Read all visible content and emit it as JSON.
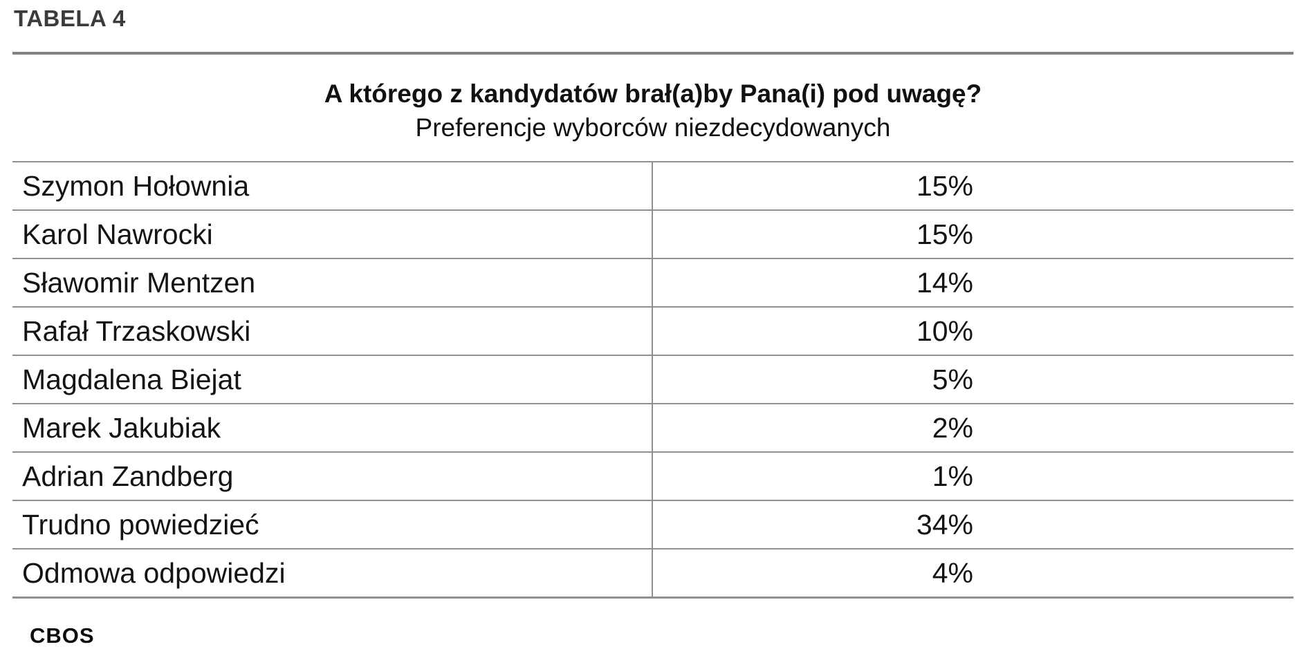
{
  "header": {
    "table_label": "TABELA 4"
  },
  "title": {
    "question": "A którego z kandydatów brał(a)by Pana(i) pod uwagę?",
    "subtitle": "Preferencje wyborców niezdecydowanych"
  },
  "table": {
    "rows": [
      {
        "label": "Szymon Hołownia",
        "value": "15%"
      },
      {
        "label": "Karol Nawrocki",
        "value": "15%"
      },
      {
        "label": "Sławomir Mentzen",
        "value": "14%"
      },
      {
        "label": "Rafał Trzaskowski",
        "value": "10%"
      },
      {
        "label": "Magdalena Biejat",
        "value": "5%"
      },
      {
        "label": "Marek Jakubiak",
        "value": "2%"
      },
      {
        "label": "Adrian Zandberg",
        "value": "1%"
      },
      {
        "label": "Trudno powiedzieć",
        "value": "34%"
      },
      {
        "label": "Odmowa odpowiedzi",
        "value": "4%"
      }
    ]
  },
  "footer": {
    "logo_text": "CBOS"
  },
  "colors": {
    "rule_gray": "#828282",
    "table_border_gray": "#8f8f8f",
    "heading_text": "#3b3b3d",
    "body_text": "#141414",
    "background": "#ffffff"
  },
  "chart_data": {
    "type": "table",
    "title": "A którego z kandydatów brał(a)by Pana(i) pod uwagę?",
    "subtitle": "Preferencje wyborców niezdecydowanych",
    "categories": [
      "Szymon Hołownia",
      "Karol Nawrocki",
      "Sławomir Mentzen",
      "Rafał Trzaskowski",
      "Magdalena Biejat",
      "Marek Jakubiak",
      "Adrian Zandberg",
      "Trudno powiedzieć",
      "Odmowa odpowiedzi"
    ],
    "values": [
      15,
      15,
      14,
      10,
      5,
      2,
      1,
      34,
      4
    ],
    "unit": "%",
    "source_label": "CBOS"
  }
}
